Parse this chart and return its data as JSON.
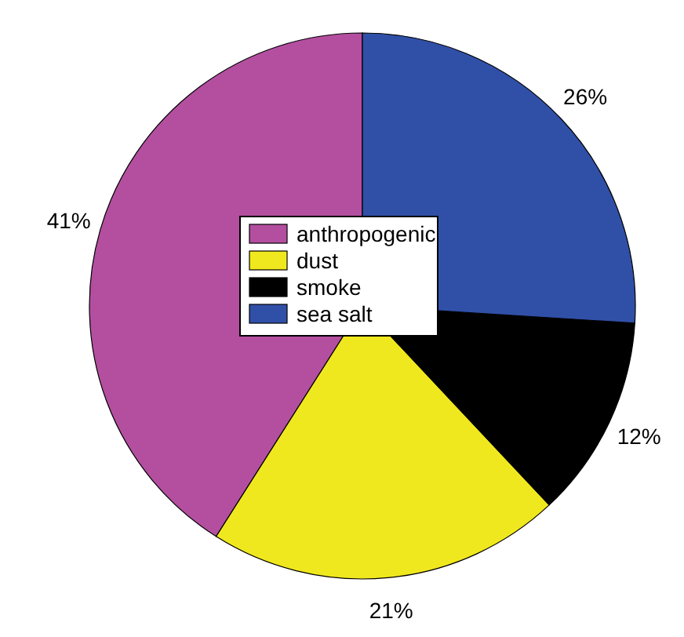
{
  "chart_data": {
    "type": "pie",
    "categories": [
      "anthropogenic",
      "dust",
      "smoke",
      "sea salt"
    ],
    "values": [
      41,
      21,
      12,
      26
    ],
    "colors": [
      "#b44fa0",
      "#f0e81e",
      "#000000",
      "#3050a8"
    ],
    "value_labels": [
      "41%",
      "21%",
      "12%",
      "26%"
    ],
    "legend": "center"
  }
}
